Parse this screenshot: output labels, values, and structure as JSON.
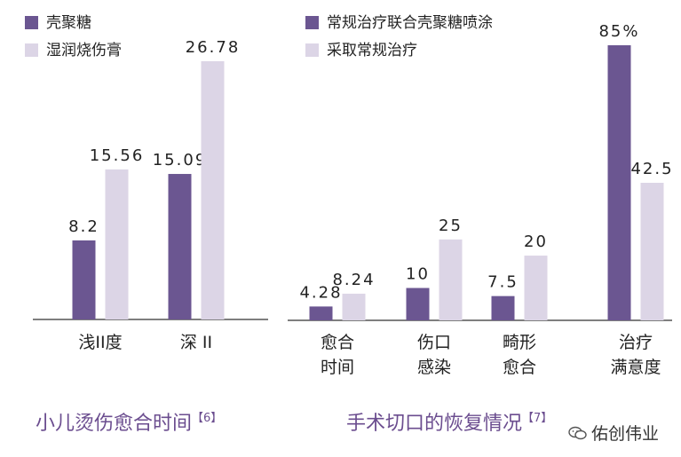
{
  "colors": {
    "dark": "#6b5691",
    "light": "#dcd5e6",
    "text": "#222222",
    "title": "#6b4d8f"
  },
  "chart_data": [
    {
      "type": "bar",
      "title": "小儿烫伤愈合时间",
      "ref": "【6】",
      "categories": [
        "浅II度",
        "深 II"
      ],
      "series": [
        {
          "name": "壳聚糖",
          "values": [
            8.2,
            15.09
          ],
          "labels": [
            "8.2",
            "15.09"
          ]
        },
        {
          "name": "湿润烧伤膏",
          "values": [
            15.56,
            26.78
          ],
          "labels": [
            "15.56",
            "26.78"
          ]
        }
      ],
      "ylim": [
        0,
        30
      ],
      "legend": "top-left",
      "grid": false
    },
    {
      "type": "bar",
      "title": "手术切口的恢复情况",
      "ref": "【7】",
      "categories": [
        [
          "愈合",
          "时间"
        ],
        [
          "伤口",
          "感染"
        ],
        [
          "畸形",
          "愈合"
        ],
        [
          "治疗",
          "满意度"
        ]
      ],
      "series": [
        {
          "name": "常规治疗联合壳聚糖喷涂",
          "values": [
            4.28,
            10,
            7.5,
            85
          ],
          "labels": [
            "4.28",
            "10",
            "7.5",
            "85%"
          ]
        },
        {
          "name": "采取常规治疗",
          "values": [
            8.24,
            25,
            20,
            42.5
          ],
          "labels": [
            "8.24",
            "25",
            "20",
            "42.5"
          ]
        }
      ],
      "legend": "top-left",
      "grid": false
    }
  ],
  "watermark": {
    "text": "佑创伟业",
    "icon": "wechat-icon"
  }
}
